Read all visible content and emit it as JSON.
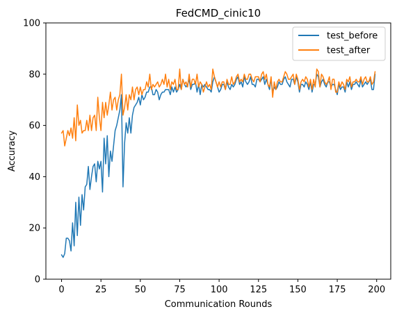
{
  "chart_data": {
    "type": "line",
    "title": "FedCMD_cinic10",
    "xlabel": "Communication Rounds",
    "ylabel": "Accuracy",
    "xlim": [
      -9.95,
      208.95
    ],
    "ylim": [
      0,
      100
    ],
    "xticks": [
      0,
      25,
      50,
      75,
      100,
      125,
      150,
      175,
      200
    ],
    "yticks": [
      0,
      20,
      40,
      60,
      80,
      100
    ],
    "grid": false,
    "legend_position": "top-right",
    "series": [
      {
        "name": "test_before",
        "color": "#1f77b4",
        "x": [
          0,
          1,
          2,
          3,
          4,
          5,
          6,
          7,
          8,
          9,
          10,
          11,
          12,
          13,
          14,
          15,
          16,
          17,
          18,
          19,
          20,
          21,
          22,
          23,
          24,
          25,
          26,
          27,
          28,
          29,
          30,
          31,
          32,
          33,
          34,
          35,
          36,
          37,
          38,
          39,
          40,
          41,
          42,
          43,
          44,
          45,
          46,
          47,
          48,
          49,
          50,
          51,
          52,
          53,
          54,
          55,
          56,
          57,
          58,
          59,
          60,
          61,
          62,
          63,
          64,
          65,
          66,
          67,
          68,
          69,
          70,
          71,
          72,
          73,
          74,
          75,
          76,
          77,
          78,
          79,
          80,
          81,
          82,
          83,
          84,
          85,
          86,
          87,
          88,
          89,
          90,
          91,
          92,
          93,
          94,
          95,
          96,
          97,
          98,
          99,
          100,
          101,
          102,
          103,
          104,
          105,
          106,
          107,
          108,
          109,
          110,
          111,
          112,
          113,
          114,
          115,
          116,
          117,
          118,
          119,
          120,
          121,
          122,
          123,
          124,
          125,
          126,
          127,
          128,
          129,
          130,
          131,
          132,
          133,
          134,
          135,
          136,
          137,
          138,
          139,
          140,
          141,
          142,
          143,
          144,
          145,
          146,
          147,
          148,
          149,
          150,
          151,
          152,
          153,
          154,
          155,
          156,
          157,
          158,
          159,
          160,
          161,
          162,
          163,
          164,
          165,
          166,
          167,
          168,
          169,
          170,
          171,
          172,
          173,
          174,
          175,
          176,
          177,
          178,
          179,
          180,
          181,
          182,
          183,
          184,
          185,
          186,
          187,
          188,
          189,
          190,
          191,
          192,
          193,
          194,
          195,
          196,
          197,
          198,
          199
        ],
        "y": [
          9.5,
          8.5,
          10,
          16,
          16,
          15,
          11,
          22,
          13,
          30,
          17,
          32,
          21,
          33,
          27,
          36,
          37,
          44,
          35,
          40,
          44,
          45,
          38,
          46,
          43,
          46,
          34,
          55,
          45,
          56,
          40,
          50,
          46,
          52,
          58,
          60,
          63,
          66,
          72,
          36,
          53,
          61,
          57,
          63,
          57,
          64,
          67,
          68,
          69,
          71,
          68,
          72,
          70,
          71,
          73,
          73,
          75,
          75,
          72,
          72,
          74,
          73,
          70,
          72,
          73,
          73,
          74,
          74,
          74,
          72,
          75,
          73,
          75,
          73,
          74,
          76,
          74,
          78,
          76,
          75,
          76,
          78,
          74,
          76,
          76,
          77,
          73,
          76,
          72,
          76,
          75,
          76,
          75,
          74,
          74,
          73,
          77,
          79,
          77,
          75,
          73,
          74,
          76,
          76,
          74,
          77,
          75,
          74,
          76,
          75,
          76,
          78,
          79,
          76,
          77,
          75,
          79,
          77,
          76,
          77,
          79,
          76,
          76,
          75,
          78,
          78,
          77,
          78,
          79,
          76,
          78,
          76,
          74,
          78,
          73,
          75,
          74,
          75,
          77,
          76,
          76,
          78,
          79,
          77,
          76,
          75,
          78,
          78,
          76,
          79,
          77,
          73,
          76,
          76,
          75,
          77,
          76,
          74,
          77,
          73,
          76,
          76,
          80,
          79,
          75,
          77,
          78,
          76,
          75,
          77,
          77,
          75,
          76,
          76,
          74,
          72,
          76,
          74,
          75,
          75,
          73,
          77,
          75,
          77,
          74,
          76,
          76,
          77,
          76,
          75,
          78,
          75,
          76,
          77,
          76,
          77,
          78,
          74,
          74,
          80
        ]
      },
      {
        "name": "test_after",
        "color": "#ff7f0e",
        "x": [
          0,
          1,
          2,
          3,
          4,
          5,
          6,
          7,
          8,
          9,
          10,
          11,
          12,
          13,
          14,
          15,
          16,
          17,
          18,
          19,
          20,
          21,
          22,
          23,
          24,
          25,
          26,
          27,
          28,
          29,
          30,
          31,
          32,
          33,
          34,
          35,
          36,
          37,
          38,
          39,
          40,
          41,
          42,
          43,
          44,
          45,
          46,
          47,
          48,
          49,
          50,
          51,
          52,
          53,
          54,
          55,
          56,
          57,
          58,
          59,
          60,
          61,
          62,
          63,
          64,
          65,
          66,
          67,
          68,
          69,
          70,
          71,
          72,
          73,
          74,
          75,
          76,
          77,
          78,
          79,
          80,
          81,
          82,
          83,
          84,
          85,
          86,
          87,
          88,
          89,
          90,
          91,
          92,
          93,
          94,
          95,
          96,
          97,
          98,
          99,
          100,
          101,
          102,
          103,
          104,
          105,
          106,
          107,
          108,
          109,
          110,
          111,
          112,
          113,
          114,
          115,
          116,
          117,
          118,
          119,
          120,
          121,
          122,
          123,
          124,
          125,
          126,
          127,
          128,
          129,
          130,
          131,
          132,
          133,
          134,
          135,
          136,
          137,
          138,
          139,
          140,
          141,
          142,
          143,
          144,
          145,
          146,
          147,
          148,
          149,
          150,
          151,
          152,
          153,
          154,
          155,
          156,
          157,
          158,
          159,
          160,
          161,
          162,
          163,
          164,
          165,
          166,
          167,
          168,
          169,
          170,
          171,
          172,
          173,
          174,
          175,
          176,
          177,
          178,
          179,
          180,
          181,
          182,
          183,
          184,
          185,
          186,
          187,
          188,
          189,
          190,
          191,
          192,
          193,
          194,
          195,
          196,
          197,
          198,
          199
        ],
        "y": [
          57,
          58,
          52,
          55,
          58,
          56,
          59,
          55,
          63,
          54,
          68,
          60,
          62,
          57,
          58,
          58,
          62,
          58,
          64,
          58,
          63,
          64,
          58,
          71,
          63,
          58,
          69,
          63,
          69,
          64,
          68,
          73,
          66,
          70,
          71,
          66,
          70,
          72,
          80,
          64,
          67,
          72,
          66,
          72,
          70,
          75,
          70,
          74,
          75,
          72,
          75,
          72,
          74,
          74,
          77,
          75,
          80,
          74,
          76,
          75,
          76,
          77,
          75,
          76,
          78,
          76,
          80,
          75,
          78,
          74,
          77,
          76,
          78,
          74,
          74,
          82,
          74,
          78,
          76,
          77,
          75,
          80,
          75,
          78,
          78,
          76,
          80,
          75,
          77,
          76,
          73,
          75,
          77,
          75,
          76,
          74,
          82,
          79,
          77,
          75,
          77,
          75,
          77,
          77,
          74,
          78,
          76,
          76,
          79,
          76,
          77,
          79,
          80,
          77,
          78,
          77,
          80,
          78,
          78,
          80,
          80,
          78,
          77,
          79,
          79,
          79,
          77,
          80,
          81,
          78,
          80,
          76,
          75,
          79,
          71,
          77,
          74,
          77,
          78,
          77,
          77,
          79,
          81,
          80,
          78,
          78,
          79,
          80,
          76,
          80,
          78,
          74,
          77,
          78,
          77,
          79,
          78,
          75,
          78,
          74,
          78,
          75,
          82,
          81,
          75,
          80,
          79,
          77,
          76,
          77,
          79,
          74,
          78,
          78,
          73,
          73,
          77,
          75,
          77,
          76,
          74,
          78,
          77,
          79,
          75,
          77,
          77,
          78,
          77,
          77,
          79,
          76,
          78,
          79,
          77,
          77,
          79,
          76,
          77,
          81
        ]
      }
    ]
  }
}
